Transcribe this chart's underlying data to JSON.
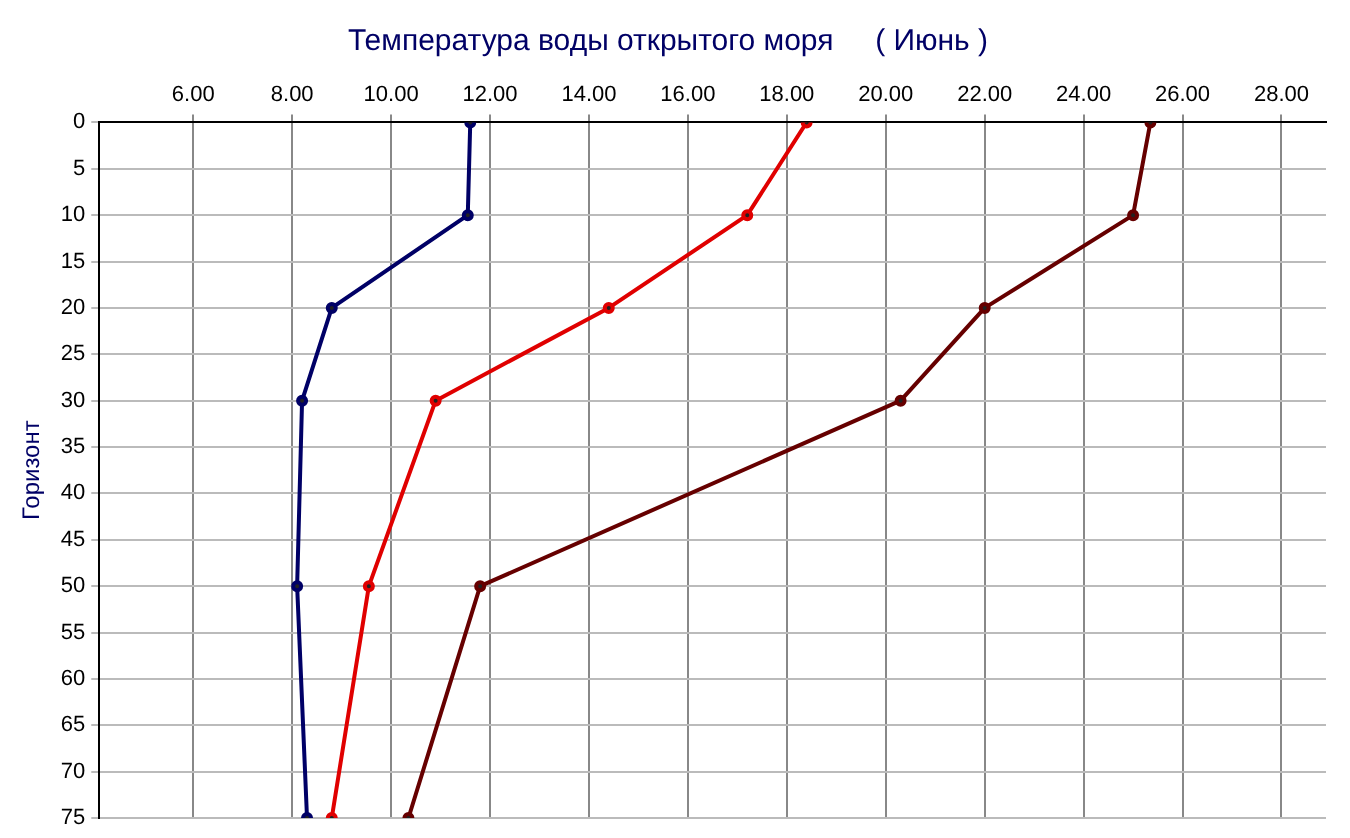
{
  "chart_data": {
    "type": "line",
    "title": "Температура воды открытого моря     ( Июнь )",
    "ylabel": "Горизонт",
    "xlim": [
      4.1,
      28.9
    ],
    "xticks": [
      {
        "value": 6,
        "label": "6.00"
      },
      {
        "value": 8,
        "label": "8.00"
      },
      {
        "value": 10,
        "label": "10.00"
      },
      {
        "value": 12,
        "label": "12.00"
      },
      {
        "value": 14,
        "label": "14.00"
      },
      {
        "value": 16,
        "label": "16.00"
      },
      {
        "value": 18,
        "label": "18.00"
      },
      {
        "value": 20,
        "label": "20.00"
      },
      {
        "value": 22,
        "label": "22.00"
      },
      {
        "value": 24,
        "label": "24.00"
      },
      {
        "value": 26,
        "label": "26.00"
      },
      {
        "value": 28,
        "label": "28.00"
      }
    ],
    "ylim": [
      75,
      0
    ],
    "yticks": [
      0,
      5,
      10,
      15,
      20,
      25,
      30,
      35,
      40,
      45,
      50,
      55,
      60,
      65,
      70,
      75
    ],
    "grid": true,
    "legend": false,
    "marker": "circle",
    "line_style": "solid",
    "series": [
      {
        "color": "#000066",
        "x": [
          11.6,
          11.55,
          8.8,
          8.2,
          8.1,
          8.3
        ],
        "values": [
          0,
          10,
          20,
          30,
          50,
          75
        ]
      },
      {
        "color": "#e00000",
        "x": [
          18.4,
          17.2,
          14.4,
          10.9,
          9.55,
          8.8
        ],
        "values": [
          0,
          10,
          20,
          30,
          50,
          75
        ]
      },
      {
        "color": "#660000",
        "x": [
          25.35,
          25.0,
          22.0,
          20.3,
          11.8,
          10.35
        ],
        "values": [
          0,
          10,
          20,
          30,
          50,
          75
        ]
      }
    ]
  }
}
